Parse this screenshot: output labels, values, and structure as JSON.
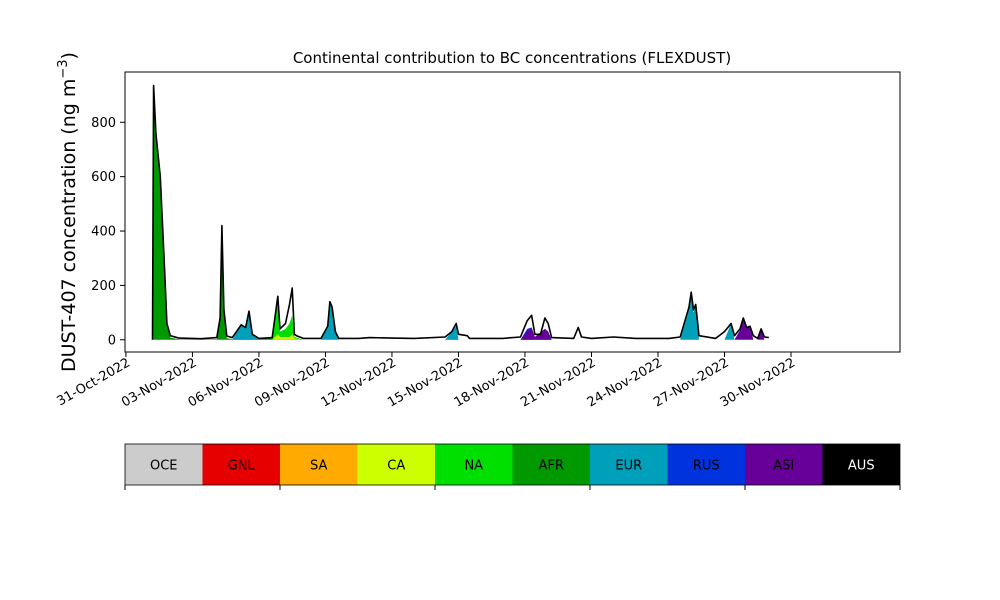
{
  "chart_data": {
    "type": "area",
    "title": "Continental contribution to BC concentrations (FLEXDUST)",
    "ylabel_main": "DUST-407 concentration (ng m",
    "ylabel_unit_sup": "−3",
    "ylabel_close": ")",
    "xlabel": "",
    "x_start_date": "2022-10-31",
    "xlim": [
      "2022-10-30T23:00",
      "2022-12-04T22:00"
    ],
    "ylim": [
      -45,
      985
    ],
    "y_ticks": [
      0,
      200,
      400,
      600,
      800
    ],
    "x_ticks": [
      {
        "date": "2022-10-31",
        "label": "31-Oct-2022"
      },
      {
        "date": "2022-11-03",
        "label": "03-Nov-2022"
      },
      {
        "date": "2022-11-06",
        "label": "06-Nov-2022"
      },
      {
        "date": "2022-11-09",
        "label": "09-Nov-2022"
      },
      {
        "date": "2022-11-12",
        "label": "12-Nov-2022"
      },
      {
        "date": "2022-11-15",
        "label": "15-Nov-2022"
      },
      {
        "date": "2022-11-18",
        "label": "18-Nov-2022"
      },
      {
        "date": "2022-11-21",
        "label": "21-Nov-2022"
      },
      {
        "date": "2022-11-24",
        "label": "24-Nov-2022"
      },
      {
        "date": "2022-11-27",
        "label": "27-Nov-2022"
      },
      {
        "date": "2022-11-30",
        "label": "30-Nov-2022"
      }
    ],
    "grid": false,
    "legend_position": "below",
    "regions": [
      {
        "name": "OCE",
        "color": "#cccccc",
        "text_color": "#000000"
      },
      {
        "name": "GNL",
        "color": "#e60000",
        "text_color": "#000000"
      },
      {
        "name": "SA",
        "color": "#ffaa00",
        "text_color": "#000000"
      },
      {
        "name": "CA",
        "color": "#ccff00",
        "text_color": "#000000"
      },
      {
        "name": "NA",
        "color": "#00e000",
        "text_color": "#000000"
      },
      {
        "name": "AFR",
        "color": "#009900",
        "text_color": "#000000"
      },
      {
        "name": "EUR",
        "color": "#00a0bb",
        "text_color": "#000000"
      },
      {
        "name": "RUS",
        "color": "#0033dd",
        "text_color": "#000000"
      },
      {
        "name": "ASI",
        "color": "#660099",
        "text_color": "#000000"
      },
      {
        "name": "AUS",
        "color": "#000000",
        "text_color": "#ffffff"
      }
    ],
    "total_line_color": "#000000",
    "total_peaks": [
      {
        "x": 1.2,
        "y": 0
      },
      {
        "x": 1.25,
        "y": 935
      },
      {
        "x": 1.35,
        "y": 760
      },
      {
        "x": 1.55,
        "y": 600
      },
      {
        "x": 1.75,
        "y": 250
      },
      {
        "x": 1.85,
        "y": 60
      },
      {
        "x": 2.0,
        "y": 15
      },
      {
        "x": 2.4,
        "y": 6
      },
      {
        "x": 3.4,
        "y": 4
      },
      {
        "x": 4.1,
        "y": 8
      },
      {
        "x": 4.25,
        "y": 80
      },
      {
        "x": 4.33,
        "y": 420
      },
      {
        "x": 4.42,
        "y": 110
      },
      {
        "x": 4.55,
        "y": 14
      },
      {
        "x": 4.8,
        "y": 8
      },
      {
        "x": 5.2,
        "y": 55
      },
      {
        "x": 5.4,
        "y": 45
      },
      {
        "x": 5.55,
        "y": 105
      },
      {
        "x": 5.7,
        "y": 20
      },
      {
        "x": 6.0,
        "y": 5
      },
      {
        "x": 6.6,
        "y": 8
      },
      {
        "x": 6.85,
        "y": 160
      },
      {
        "x": 6.95,
        "y": 40
      },
      {
        "x": 7.2,
        "y": 60
      },
      {
        "x": 7.38,
        "y": 130
      },
      {
        "x": 7.5,
        "y": 190
      },
      {
        "x": 7.6,
        "y": 20
      },
      {
        "x": 7.7,
        "y": 15
      },
      {
        "x": 8.0,
        "y": 5
      },
      {
        "x": 8.8,
        "y": 5
      },
      {
        "x": 9.1,
        "y": 50
      },
      {
        "x": 9.2,
        "y": 140
      },
      {
        "x": 9.3,
        "y": 120
      },
      {
        "x": 9.45,
        "y": 30
      },
      {
        "x": 9.6,
        "y": 5
      },
      {
        "x": 10.5,
        "y": 5
      },
      {
        "x": 11.0,
        "y": 8
      },
      {
        "x": 12.0,
        "y": 6
      },
      {
        "x": 13.0,
        "y": 5
      },
      {
        "x": 14.4,
        "y": 10
      },
      {
        "x": 14.7,
        "y": 30
      },
      {
        "x": 14.9,
        "y": 60
      },
      {
        "x": 15.0,
        "y": 20
      },
      {
        "x": 15.4,
        "y": 15
      },
      {
        "x": 15.5,
        "y": 5
      },
      {
        "x": 17.0,
        "y": 5
      },
      {
        "x": 17.8,
        "y": 10
      },
      {
        "x": 18.1,
        "y": 70
      },
      {
        "x": 18.3,
        "y": 90
      },
      {
        "x": 18.45,
        "y": 20
      },
      {
        "x": 18.7,
        "y": 20
      },
      {
        "x": 18.9,
        "y": 80
      },
      {
        "x": 19.05,
        "y": 60
      },
      {
        "x": 19.2,
        "y": 8
      },
      {
        "x": 20.2,
        "y": 5
      },
      {
        "x": 20.4,
        "y": 45
      },
      {
        "x": 20.55,
        "y": 10
      },
      {
        "x": 21.0,
        "y": 5
      },
      {
        "x": 22.0,
        "y": 10
      },
      {
        "x": 23.0,
        "y": 5
      },
      {
        "x": 24.5,
        "y": 5
      },
      {
        "x": 25.0,
        "y": 10
      },
      {
        "x": 25.4,
        "y": 120
      },
      {
        "x": 25.5,
        "y": 175
      },
      {
        "x": 25.6,
        "y": 110
      },
      {
        "x": 25.7,
        "y": 130
      },
      {
        "x": 25.85,
        "y": 15
      },
      {
        "x": 26.6,
        "y": 5
      },
      {
        "x": 27.0,
        "y": 30
      },
      {
        "x": 27.3,
        "y": 60
      },
      {
        "x": 27.45,
        "y": 15
      },
      {
        "x": 27.7,
        "y": 40
      },
      {
        "x": 27.85,
        "y": 80
      },
      {
        "x": 28.0,
        "y": 45
      },
      {
        "x": 28.15,
        "y": 50
      },
      {
        "x": 28.3,
        "y": 15
      },
      {
        "x": 28.5,
        "y": 5
      },
      {
        "x": 28.65,
        "y": 40
      },
      {
        "x": 28.8,
        "y": 10
      },
      {
        "x": 29.0,
        "y": 8
      }
    ],
    "stacked_contributions": {
      "AFR": [
        {
          "x": 1.2,
          "y": 0
        },
        {
          "x": 1.25,
          "y": 900
        },
        {
          "x": 1.35,
          "y": 740
        },
        {
          "x": 1.55,
          "y": 580
        },
        {
          "x": 1.75,
          "y": 240
        },
        {
          "x": 1.85,
          "y": 50
        },
        {
          "x": 2.0,
          "y": 8
        },
        {
          "x": 2.4,
          "y": 2
        },
        {
          "x": 4.1,
          "y": 2
        },
        {
          "x": 4.25,
          "y": 70
        },
        {
          "x": 4.33,
          "y": 400
        },
        {
          "x": 4.42,
          "y": 100
        },
        {
          "x": 4.55,
          "y": 6
        },
        {
          "x": 4.8,
          "y": 2
        },
        {
          "x": 7.2,
          "y": 10
        },
        {
          "x": 7.38,
          "y": 60
        },
        {
          "x": 7.5,
          "y": 80
        },
        {
          "x": 7.6,
          "y": 5
        },
        {
          "x": 8.0,
          "y": 0
        }
      ],
      "NA": [
        {
          "x": 6.6,
          "y": 0
        },
        {
          "x": 6.85,
          "y": 140
        },
        {
          "x": 6.95,
          "y": 30
        },
        {
          "x": 7.2,
          "y": 40
        },
        {
          "x": 7.38,
          "y": 60
        },
        {
          "x": 7.5,
          "y": 90
        },
        {
          "x": 7.6,
          "y": 10
        },
        {
          "x": 8.0,
          "y": 0
        },
        {
          "x": 14.4,
          "y": 0
        },
        {
          "x": 14.7,
          "y": 10
        },
        {
          "x": 15.0,
          "y": 0
        }
      ],
      "CA": [
        {
          "x": 6.6,
          "y": 0
        },
        {
          "x": 6.85,
          "y": 20
        },
        {
          "x": 6.95,
          "y": 10
        },
        {
          "x": 7.38,
          "y": 10
        },
        {
          "x": 7.5,
          "y": 20
        },
        {
          "x": 7.6,
          "y": 5
        },
        {
          "x": 8.0,
          "y": 0
        }
      ],
      "EUR": [
        {
          "x": 4.8,
          "y": 0
        },
        {
          "x": 5.2,
          "y": 55
        },
        {
          "x": 5.4,
          "y": 45
        },
        {
          "x": 5.55,
          "y": 105
        },
        {
          "x": 5.7,
          "y": 20
        },
        {
          "x": 6.0,
          "y": 0
        },
        {
          "x": 8.8,
          "y": 0
        },
        {
          "x": 9.1,
          "y": 50
        },
        {
          "x": 9.2,
          "y": 140
        },
        {
          "x": 9.3,
          "y": 120
        },
        {
          "x": 9.45,
          "y": 30
        },
        {
          "x": 9.6,
          "y": 0
        },
        {
          "x": 14.4,
          "y": 0
        },
        {
          "x": 14.9,
          "y": 50
        },
        {
          "x": 15.0,
          "y": 0
        },
        {
          "x": 25.0,
          "y": 0
        },
        {
          "x": 25.4,
          "y": 110
        },
        {
          "x": 25.5,
          "y": 160
        },
        {
          "x": 25.6,
          "y": 100
        },
        {
          "x": 25.7,
          "y": 120
        },
        {
          "x": 25.85,
          "y": 0
        },
        {
          "x": 27.0,
          "y": 0
        },
        {
          "x": 27.3,
          "y": 60
        },
        {
          "x": 27.45,
          "y": 0
        }
      ],
      "RUS": [
        {
          "x": 17.8,
          "y": 0
        },
        {
          "x": 18.1,
          "y": 40
        },
        {
          "x": 18.3,
          "y": 45
        },
        {
          "x": 18.45,
          "y": 10
        },
        {
          "x": 18.9,
          "y": 40
        },
        {
          "x": 19.05,
          "y": 30
        },
        {
          "x": 19.2,
          "y": 0
        }
      ],
      "ASI": [
        {
          "x": 17.8,
          "y": 0
        },
        {
          "x": 18.1,
          "y": 30
        },
        {
          "x": 18.3,
          "y": 45
        },
        {
          "x": 18.45,
          "y": 10
        },
        {
          "x": 18.9,
          "y": 40
        },
        {
          "x": 19.05,
          "y": 30
        },
        {
          "x": 19.2,
          "y": 0
        },
        {
          "x": 27.45,
          "y": 0
        },
        {
          "x": 27.7,
          "y": 35
        },
        {
          "x": 27.85,
          "y": 80
        },
        {
          "x": 28.0,
          "y": 45
        },
        {
          "x": 28.15,
          "y": 50
        },
        {
          "x": 28.3,
          "y": 0
        },
        {
          "x": 28.5,
          "y": 0
        },
        {
          "x": 28.65,
          "y": 40
        },
        {
          "x": 28.8,
          "y": 0
        }
      ]
    }
  }
}
